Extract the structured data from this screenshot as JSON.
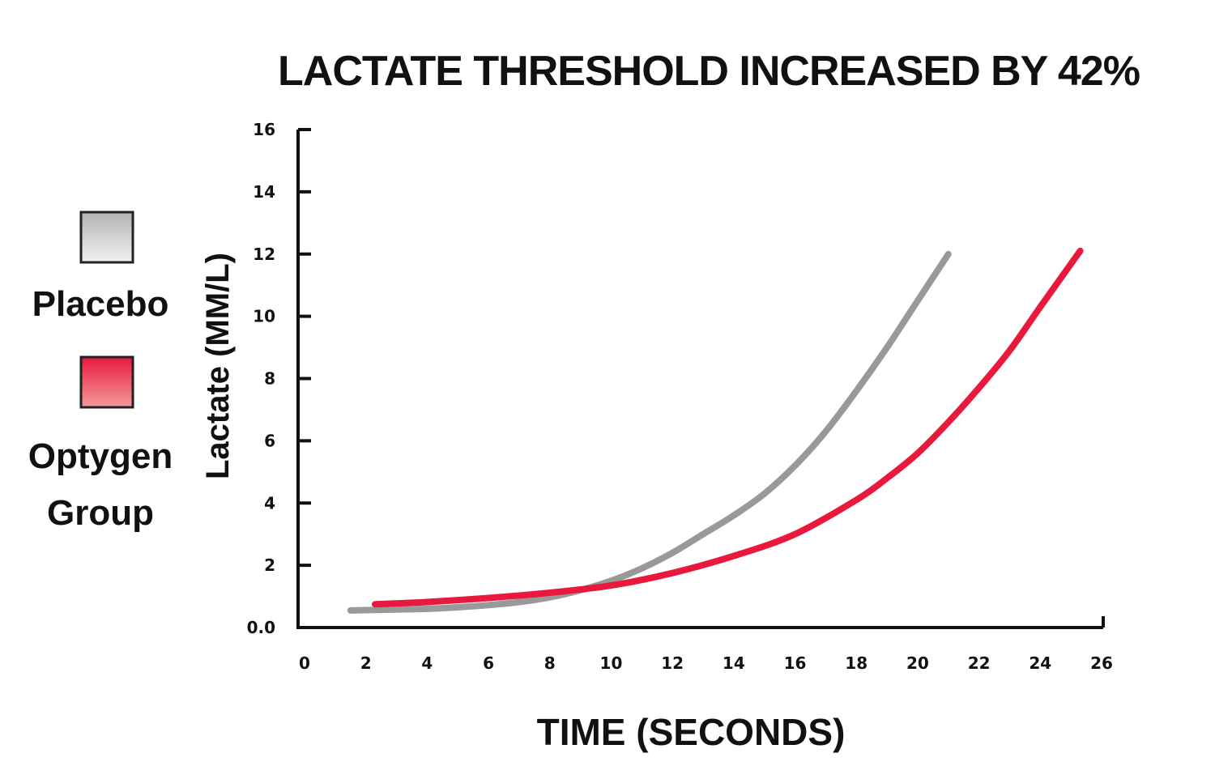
{
  "chart_data": {
    "type": "line",
    "title": "LACTATE THRESHOLD INCREASED BY 42%",
    "xlabel": "TIME (SECONDS)",
    "ylabel": "Lactate (MM/L)",
    "xlim": [
      0,
      26
    ],
    "ylim": [
      0,
      16
    ],
    "x_ticks": [
      0,
      2,
      4,
      6,
      8,
      10,
      12,
      14,
      16,
      18,
      20,
      22,
      24,
      26
    ],
    "y_ticks": [
      {
        "value": 0,
        "label": "0.0"
      },
      {
        "value": 2,
        "label": "2"
      },
      {
        "value": 4,
        "label": "4"
      },
      {
        "value": 6,
        "label": "6"
      },
      {
        "value": 8,
        "label": "8"
      },
      {
        "value": 10,
        "label": "10"
      },
      {
        "value": 12,
        "label": "12"
      },
      {
        "value": 14,
        "label": "14"
      },
      {
        "value": 16,
        "label": "16"
      }
    ],
    "grid": false,
    "legend_position": "left",
    "series": [
      {
        "name": "Placebo",
        "color": "#999999",
        "x": [
          1.5,
          3,
          4,
          5,
          6,
          7,
          8,
          9,
          10,
          11,
          12,
          13,
          14,
          15,
          16,
          17,
          18,
          19,
          20,
          21
        ],
        "y": [
          0.55,
          0.58,
          0.6,
          0.65,
          0.72,
          0.82,
          0.97,
          1.2,
          1.5,
          1.9,
          2.4,
          3.0,
          3.6,
          4.3,
          5.2,
          6.3,
          7.6,
          9.0,
          10.5,
          12.0
        ]
      },
      {
        "name": "Optygen Group",
        "color": "#e8193c",
        "x": [
          2.3,
          4,
          6,
          8,
          10,
          12,
          14,
          16,
          18,
          19,
          20,
          21,
          22,
          23,
          24,
          25.3
        ],
        "y": [
          0.75,
          0.82,
          0.95,
          1.12,
          1.35,
          1.75,
          2.3,
          3.0,
          4.1,
          4.8,
          5.6,
          6.6,
          7.7,
          8.9,
          10.3,
          12.1
        ]
      }
    ]
  }
}
